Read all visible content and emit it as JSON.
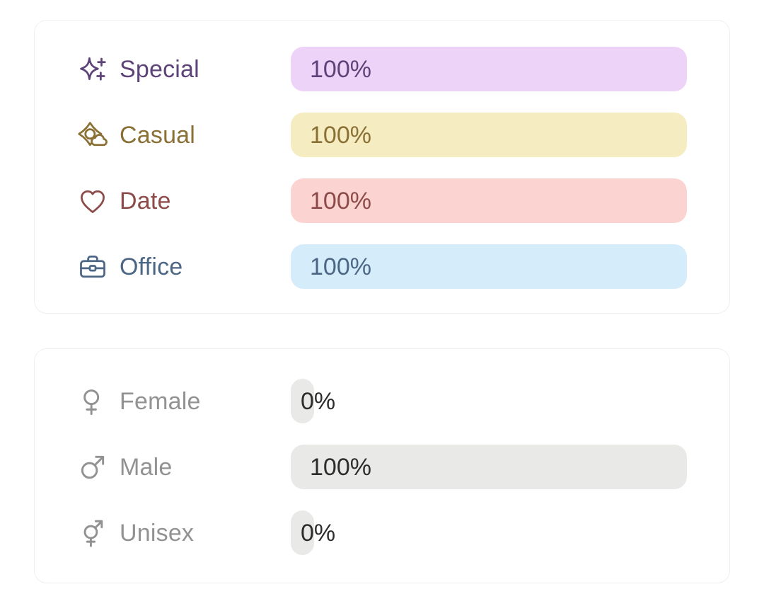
{
  "colors": {
    "page_bg": "#ffffff",
    "card_bg": "#ffffff",
    "card_border": "#efefef",
    "neutral_bar": "#e9e9e8",
    "neutral_value_text": "#2d2d2d",
    "neutral_label": "#929292"
  },
  "cards": [
    {
      "name": "occasion-stats",
      "rows": [
        {
          "id": "special",
          "label": "Special",
          "icon": "sparkles-icon",
          "value": "100%",
          "percent": 100,
          "bar_bg": "#eed3f9",
          "text_color": "#5e4379",
          "label_color": "#5e4379"
        },
        {
          "id": "casual",
          "label": "Casual",
          "icon": "sun-cloud-icon",
          "value": "100%",
          "percent": 100,
          "bar_bg": "#f6ecc2",
          "text_color": "#8a7035",
          "label_color": "#8a7035"
        },
        {
          "id": "date",
          "label": "Date",
          "icon": "heart-icon",
          "value": "100%",
          "percent": 100,
          "bar_bg": "#fbd3d1",
          "text_color": "#8c4a49",
          "label_color": "#8c4a49"
        },
        {
          "id": "office",
          "label": "Office",
          "icon": "briefcase-icon",
          "value": "100%",
          "percent": 100,
          "bar_bg": "#d5ecfa",
          "text_color": "#4c6685",
          "label_color": "#4c6685"
        }
      ]
    },
    {
      "name": "gender-stats",
      "rows": [
        {
          "id": "female",
          "label": "Female",
          "icon": "female-icon",
          "value": "0%",
          "percent": 0,
          "bar_bg": "#e9e9e8",
          "text_color": "#2d2d2d",
          "label_color": "#929292"
        },
        {
          "id": "male",
          "label": "Male",
          "icon": "male-icon",
          "value": "100%",
          "percent": 100,
          "bar_bg": "#e9e9e8",
          "text_color": "#2d2d2d",
          "label_color": "#929292"
        },
        {
          "id": "unisex",
          "label": "Unisex",
          "icon": "unisex-icon",
          "value": "0%",
          "percent": 0,
          "bar_bg": "#e9e9e8",
          "text_color": "#2d2d2d",
          "label_color": "#929292"
        }
      ]
    }
  ]
}
